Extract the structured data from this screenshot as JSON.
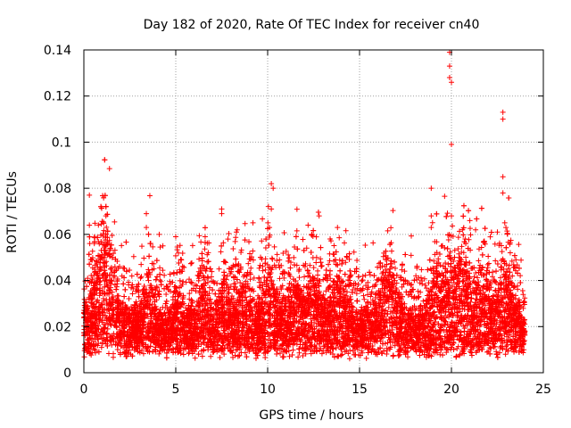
{
  "chart_data": {
    "type": "scatter",
    "title": "Day 182 of 2020, Rate Of TEC Index for receiver cn40",
    "xlabel": "GPS time / hours",
    "ylabel": "ROTI / TECUs",
    "xlim": [
      0,
      25
    ],
    "ylim": [
      0,
      0.14
    ],
    "xticks": [
      0,
      5,
      10,
      15,
      20,
      25
    ],
    "xtick_labels": [
      "0",
      "5",
      "10",
      "15",
      "20",
      "25"
    ],
    "yticks": [
      0,
      0.02,
      0.04,
      0.06,
      0.08,
      0.1,
      0.12,
      0.14
    ],
    "ytick_labels": [
      "0",
      "0.02",
      "0.04",
      "0.06",
      "0.08",
      "0.1",
      "0.12",
      "0.14"
    ],
    "grid": true,
    "marker": "+",
    "marker_color": "#ff0000",
    "data_x_range": [
      0,
      24
    ],
    "series": [
      {
        "name": "ROTI",
        "notable_points": [
          {
            "x": 0.3,
            "y": 0.077
          },
          {
            "x": 0.3,
            "y": 0.064
          },
          {
            "x": 1.2,
            "y": 0.072
          },
          {
            "x": 1.2,
            "y": 0.068
          },
          {
            "x": 3.4,
            "y": 0.069
          },
          {
            "x": 3.4,
            "y": 0.063
          },
          {
            "x": 4.1,
            "y": 0.06
          },
          {
            "x": 4.3,
            "y": 0.055
          },
          {
            "x": 5.0,
            "y": 0.059
          },
          {
            "x": 6.6,
            "y": 0.059
          },
          {
            "x": 7.5,
            "y": 0.071
          },
          {
            "x": 7.5,
            "y": 0.069
          },
          {
            "x": 8.3,
            "y": 0.061
          },
          {
            "x": 9.2,
            "y": 0.065
          },
          {
            "x": 10.2,
            "y": 0.082
          },
          {
            "x": 10.3,
            "y": 0.08
          },
          {
            "x": 10.2,
            "y": 0.071
          },
          {
            "x": 10.1,
            "y": 0.063
          },
          {
            "x": 12.2,
            "y": 0.064
          },
          {
            "x": 12.4,
            "y": 0.06
          },
          {
            "x": 12.8,
            "y": 0.068
          },
          {
            "x": 13.4,
            "y": 0.058
          },
          {
            "x": 13.8,
            "y": 0.063
          },
          {
            "x": 18.9,
            "y": 0.08
          },
          {
            "x": 18.9,
            "y": 0.068
          },
          {
            "x": 18.9,
            "y": 0.063
          },
          {
            "x": 19.9,
            "y": 0.139
          },
          {
            "x": 19.9,
            "y": 0.133
          },
          {
            "x": 19.9,
            "y": 0.128
          },
          {
            "x": 20.0,
            "y": 0.126
          },
          {
            "x": 20.0,
            "y": 0.099
          },
          {
            "x": 20.0,
            "y": 0.068
          },
          {
            "x": 20.6,
            "y": 0.062
          },
          {
            "x": 21.0,
            "y": 0.066
          },
          {
            "x": 22.5,
            "y": 0.061
          },
          {
            "x": 22.8,
            "y": 0.113
          },
          {
            "x": 22.8,
            "y": 0.11
          },
          {
            "x": 22.8,
            "y": 0.085
          },
          {
            "x": 22.8,
            "y": 0.078
          },
          {
            "x": 22.9,
            "y": 0.065
          },
          {
            "x": 23.2,
            "y": 0.052
          }
        ]
      }
    ]
  }
}
